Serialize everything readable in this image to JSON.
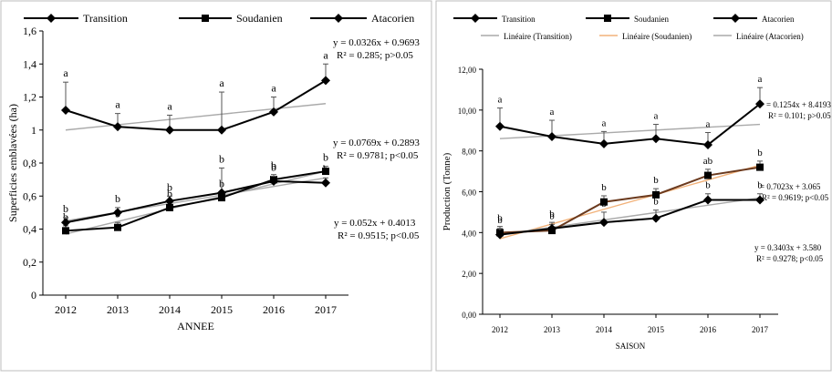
{
  "chart_data": [
    {
      "type": "line",
      "xlabel": "ANNEE",
      "ylabel": "Superficies emblavées (ha)",
      "x": [
        2012,
        2013,
        2014,
        2015,
        2016,
        2017
      ],
      "ylim": [
        0,
        1.6
      ],
      "yticks": [
        "0",
        "0,2",
        "0,4",
        "0,6",
        "0,8",
        "1",
        "1,2",
        "1,4",
        "1,6"
      ],
      "legend": [
        "Transition",
        "Soudanien",
        "Atacorien"
      ],
      "series": [
        {
          "name": "Transition",
          "marker": "diamond",
          "values": [
            1.12,
            1.02,
            1.0,
            1.0,
            1.11,
            1.3
          ],
          "err": [
            0.17,
            0.08,
            0.09,
            0.23,
            0.09,
            0.1
          ],
          "letters": [
            "a",
            "a",
            "a",
            "a",
            "a",
            "a"
          ]
        },
        {
          "name": "Soudanien",
          "marker": "square",
          "values": [
            0.39,
            0.41,
            0.53,
            0.59,
            0.7,
            0.75
          ],
          "err": [
            0.03,
            0.03,
            0.03,
            0.03,
            0.03,
            0.03
          ],
          "letters": [
            "b",
            "b",
            "b",
            "b",
            "b",
            "b"
          ]
        },
        {
          "name": "Atacorien",
          "marker": "diamond",
          "values": [
            0.44,
            0.5,
            0.57,
            0.62,
            0.69,
            0.68
          ],
          "err": [
            0.03,
            0.03,
            0.03,
            0.15,
            0.03,
            0.03
          ],
          "letters": [
            "b",
            "b",
            "b",
            "b",
            "b",
            "b"
          ]
        }
      ],
      "trendlines": [
        {
          "values_start": 1.0,
          "values_end": 1.16
        },
        {
          "values_start": 0.37,
          "values_end": 0.75
        },
        {
          "values_start": 0.45,
          "values_end": 0.71
        }
      ],
      "equations": [
        [
          "y = 0.0326x + 0.9693",
          "R² = 0.285; p>0.05"
        ],
        [
          "y = 0.0769x + 0.2893",
          "R² = 0.9781; p<0.05"
        ],
        [
          "y = 0.052x + 0.4013",
          "R² = 0.9515; p<0.05"
        ]
      ]
    },
    {
      "type": "line",
      "xlabel": "SAISON",
      "ylabel": "Production (Tonne)",
      "x": [
        2012,
        2013,
        2014,
        2015,
        2016,
        2017
      ],
      "ylim": [
        0,
        12
      ],
      "yticks": [
        "0,00",
        "2,00",
        "4,00",
        "6,00",
        "8,00",
        "10,00",
        "12,00"
      ],
      "legend": [
        "Transition",
        "Soudanien",
        "Atacorien",
        "Linéaire (Transition)",
        "Linéaire (Soudanien)",
        "Linéaire (Atacorien)"
      ],
      "series": [
        {
          "name": "Transition",
          "marker": "diamond",
          "values": [
            9.2,
            8.7,
            8.35,
            8.6,
            8.3,
            10.3
          ],
          "err": [
            0.9,
            0.8,
            0.6,
            0.7,
            0.6,
            0.8
          ],
          "letters": [
            "a",
            "a",
            "a",
            "a",
            "a",
            "a"
          ]
        },
        {
          "name": "Soudanien",
          "marker": "square",
          "values": [
            4.0,
            4.1,
            5.5,
            5.85,
            6.8,
            7.2
          ],
          "err": [
            0.3,
            0.3,
            0.3,
            0.3,
            0.3,
            0.3
          ],
          "letters": [
            "b",
            "b",
            "b",
            "b",
            "ab",
            "b"
          ]
        },
        {
          "name": "Atacorien",
          "marker": "diamond",
          "values": [
            3.9,
            4.2,
            4.5,
            4.7,
            5.6,
            5.6
          ],
          "err": [
            0.3,
            0.3,
            0.5,
            0.4,
            0.3,
            0.3
          ],
          "letters": [
            "b",
            "b",
            "b",
            "b",
            "b",
            "b"
          ]
        }
      ],
      "trendlines": [
        {
          "values_start": 8.6,
          "values_end": 9.3
        },
        {
          "values_start": 3.7,
          "values_end": 7.3
        },
        {
          "values_start": 3.9,
          "values_end": 5.7
        }
      ],
      "equations": [
        [
          "= 0.1254x + 8.4193",
          "R² = 0.101; p>0.05"
        ],
        [
          "= 0.7023x + 3.065",
          "R² = 0.9619; p<0.05"
        ],
        [
          "y = 0.3403x + 3.580",
          "R² = 0.9278; p<0.05"
        ]
      ]
    }
  ]
}
